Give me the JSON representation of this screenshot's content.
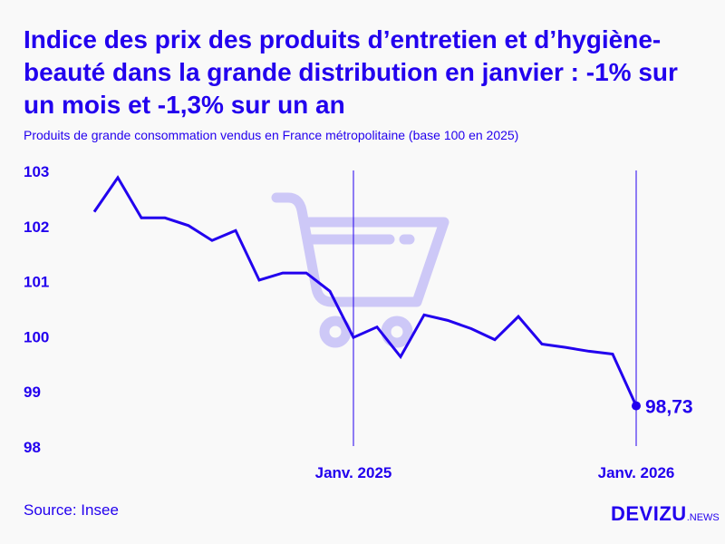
{
  "title": "Indice des prix des produits d’entretien et d’hygiène-beauté dans la grande distribution en janvier : -1% sur un mois et -1,3% sur un an",
  "subtitle": "Produits de grande consommation vendus en France métropolitaine (base 100 en 2025)",
  "source": "Source: Insee",
  "logo": {
    "main": "DEVIZU",
    "suffix": ".NEWS"
  },
  "colors": {
    "line": "#2200ee",
    "cart": "#cdc8f7",
    "background": "#f9f9f9"
  },
  "icons": {
    "watermark": "shopping-cart-icon"
  },
  "chart_data": {
    "type": "line",
    "title": "",
    "xlabel": "",
    "ylabel": "",
    "x": [
      "2024-02",
      "2024-03",
      "2024-04",
      "2024-05",
      "2024-06",
      "2024-07",
      "2024-08",
      "2024-09",
      "2024-10",
      "2024-11",
      "2024-12",
      "2025-01",
      "2025-02",
      "2025-03",
      "2025-04",
      "2025-05",
      "2025-06",
      "2025-07",
      "2025-08",
      "2025-09",
      "2025-10",
      "2025-11",
      "2025-12",
      "2026-01"
    ],
    "values": [
      102.25,
      102.87,
      102.14,
      102.14,
      102.0,
      101.73,
      101.91,
      101.01,
      101.14,
      101.14,
      100.81,
      99.97,
      100.16,
      99.62,
      100.38,
      100.28,
      100.13,
      99.93,
      100.35,
      99.85,
      99.79,
      99.72,
      99.67,
      98.73
    ],
    "ylim": [
      98,
      103
    ],
    "yticks": [
      "98",
      "99",
      "100",
      "101",
      "102",
      "103"
    ],
    "xticks": [
      {
        "x": "2025-01",
        "label": "Janv. 2025"
      },
      {
        "x": "2026-01",
        "label": "Janv. 2026"
      }
    ],
    "annotation": {
      "x": "2026-01",
      "label": "98,73"
    },
    "grid": false,
    "legend": "none"
  }
}
